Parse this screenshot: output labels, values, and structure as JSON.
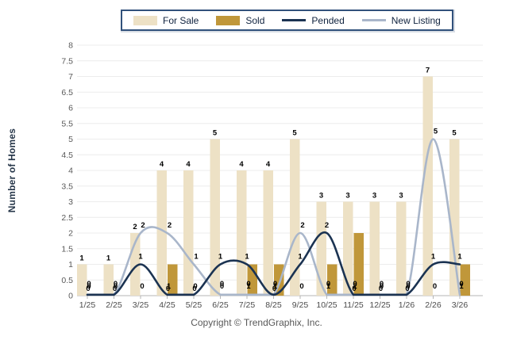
{
  "legend": {
    "items": [
      {
        "label": "For Sale",
        "type": "bar",
        "color": "#EDE1C5"
      },
      {
        "label": "Sold",
        "type": "bar",
        "color": "#C0973A"
      },
      {
        "label": "Pended",
        "type": "line",
        "color": "#1B3352"
      },
      {
        "label": "New Listing",
        "type": "line",
        "color": "#A9B6CA"
      }
    ]
  },
  "axis": {
    "y_title": "Number of Homes",
    "y_min": 0,
    "y_max": 8,
    "y_step": 0.5
  },
  "chart_data": {
    "type": "combo-bar-line",
    "title": "",
    "xlabel": "",
    "ylabel": "Number of Homes",
    "ylim": [
      0,
      8
    ],
    "grid": "horizontal",
    "legend_position": "top",
    "categories": [
      "1/25",
      "2/25",
      "3/25",
      "4/25",
      "5/25",
      "6/25",
      "7/25",
      "8/25",
      "9/25",
      "10/25",
      "11/25",
      "12/25",
      "1/26",
      "2/26",
      "3/26"
    ],
    "series": [
      {
        "name": "For Sale",
        "type": "bar",
        "color": "#EDE1C5",
        "values": [
          1,
          1,
          2,
          4,
          4,
          5,
          4,
          4,
          5,
          3,
          3,
          3,
          3,
          7,
          5
        ]
      },
      {
        "name": "Sold",
        "type": "bar",
        "color": "#C0973A",
        "values": [
          0,
          0,
          0,
          1,
          0,
          0,
          1,
          1,
          0,
          1,
          2,
          0,
          0,
          0,
          1
        ]
      },
      {
        "name": "Pended",
        "type": "line",
        "color": "#1B3352",
        "values": [
          0,
          0,
          1,
          0,
          0,
          1,
          1,
          0,
          1,
          2,
          0,
          0,
          0,
          1,
          1
        ]
      },
      {
        "name": "New Listing",
        "type": "line",
        "color": "#A9B6CA",
        "values": [
          0,
          0,
          2,
          2,
          1,
          0,
          0,
          0,
          2,
          0,
          0,
          0,
          0,
          5,
          0
        ]
      }
    ]
  },
  "footer": {
    "copyright": "Copyright © TrendGraphix, Inc."
  }
}
